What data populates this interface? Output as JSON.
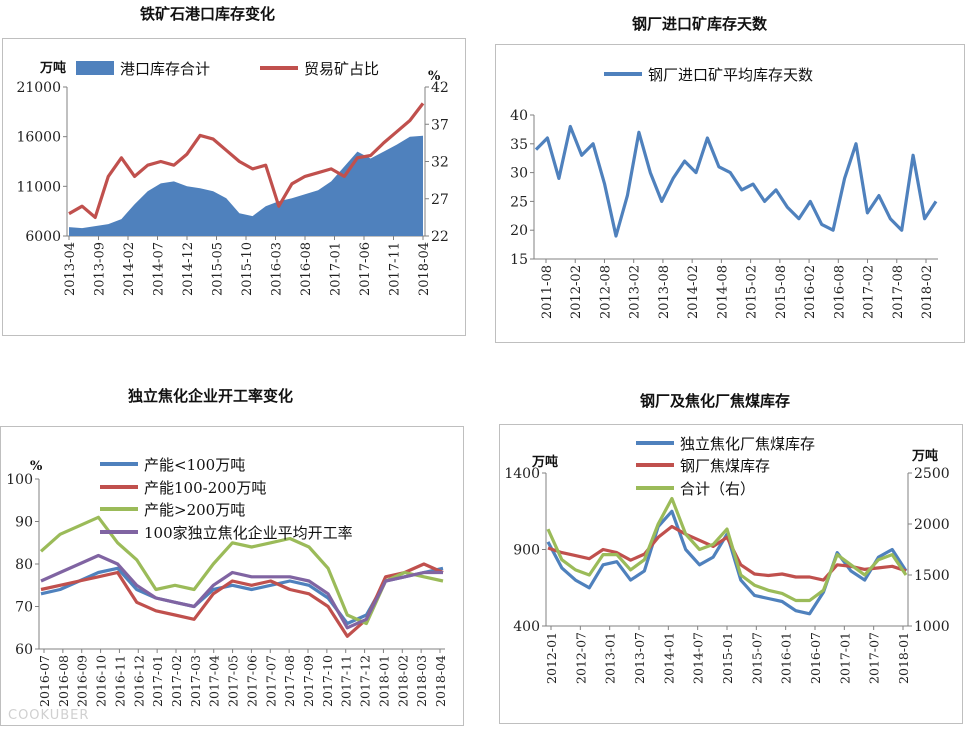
{
  "chart_data": [
    {
      "type": "area+line",
      "title": "铁矿石港口库存变化",
      "ylabel_left": "万吨",
      "ylabel_right": "%",
      "ylim_left": [
        6000,
        21000
      ],
      "ylim_right": [
        22,
        42
      ],
      "yticks_left": [
        "21000",
        "16000",
        "11000",
        "6000"
      ],
      "yticks_right": [
        "42",
        "37",
        "32",
        "27",
        "22"
      ],
      "x_ticks": [
        "2013-04",
        "2013-09",
        "2014-02",
        "2014-07",
        "2014-12",
        "2015-05",
        "2015-10",
        "2016-03",
        "2016-08",
        "2017-01",
        "2017-06",
        "2017-11",
        "2018-04"
      ],
      "series": [
        {
          "name": "港口库存合计",
          "axis": "left",
          "color": "#4f81bd",
          "values": [
            6900,
            6800,
            7000,
            7200,
            7700,
            9200,
            10500,
            11300,
            11500,
            11000,
            10800,
            10500,
            9800,
            8300,
            8000,
            9000,
            9500,
            9800,
            10200,
            10600,
            11500,
            13000,
            14500,
            13800,
            14500,
            15200,
            16000,
            16100
          ]
        },
        {
          "name": "贸易矿占比",
          "axis": "right",
          "color": "#c0504d",
          "values": [
            25,
            26,
            24.5,
            30,
            32.5,
            30,
            31.5,
            32,
            31.5,
            33,
            35.5,
            35,
            33.5,
            32,
            31,
            31.5,
            26,
            29,
            30,
            30.5,
            31,
            30,
            32.5,
            32.8,
            34.5,
            36,
            37.5,
            39.8
          ]
        }
      ]
    },
    {
      "type": "line",
      "title": "钢厂进口矿库存天数",
      "ylim": [
        15,
        40
      ],
      "yticks": [
        "40",
        "35",
        "30",
        "25",
        "20",
        "15"
      ],
      "x_ticks": [
        "2011-08",
        "2012-02",
        "2012-08",
        "2013-02",
        "2013-08",
        "2014-02",
        "2014-08",
        "2015-02",
        "2015-08",
        "2016-02",
        "2016-08",
        "2017-02",
        "2017-08",
        "2018-02"
      ],
      "series": [
        {
          "name": "钢厂进口矿平均库存天数",
          "color": "#4f81bd",
          "values": [
            34,
            36,
            29,
            38,
            33,
            35,
            28,
            19,
            26,
            37,
            30,
            25,
            29,
            32,
            30,
            36,
            31,
            30,
            27,
            28,
            25,
            27,
            24,
            22,
            25,
            21,
            20,
            29,
            35,
            23,
            26,
            22,
            20,
            33,
            22,
            25
          ]
        }
      ]
    },
    {
      "type": "line",
      "title": "独立焦化企业开工率变化",
      "ylabel": "%",
      "ylim": [
        60,
        100
      ],
      "yticks": [
        "100",
        "90",
        "80",
        "70",
        "60"
      ],
      "x_ticks": [
        "2016-07",
        "2016-08",
        "2016-09",
        "2016-10",
        "2016-11",
        "2016-12",
        "2017-01",
        "2017-02",
        "2017-03",
        "2017-04",
        "2017-05",
        "2017-06",
        "2017-07",
        "2017-08",
        "2017-09",
        "2017-10",
        "2017-11",
        "2017-12",
        "2018-01",
        "2018-02",
        "2018-03",
        "2018-04"
      ],
      "series": [
        {
          "name": "产能<100万吨",
          "color": "#4f81bd",
          "values": [
            73,
            74,
            76,
            78,
            79,
            74,
            72,
            71,
            70,
            74,
            75,
            74,
            75,
            76,
            75,
            72,
            66,
            68,
            76,
            77,
            78,
            79
          ]
        },
        {
          "name": "产能100-200万吨",
          "color": "#c0504d",
          "values": [
            74,
            75,
            76,
            77,
            78,
            71,
            69,
            68,
            67,
            73,
            76,
            75,
            76,
            74,
            73,
            70,
            63,
            67,
            77,
            78,
            80,
            78
          ]
        },
        {
          "name": "产能>200万吨",
          "color": "#9bbb59",
          "values": [
            83,
            87,
            89,
            91,
            85,
            81,
            74,
            75,
            74,
            80,
            85,
            84,
            85,
            86,
            84,
            79,
            68,
            66,
            76,
            78,
            77,
            76
          ]
        },
        {
          "name": "100家独立焦化企业平均开工率",
          "color": "#8064a2",
          "values": [
            76,
            78,
            80,
            82,
            80,
            75,
            72,
            71,
            70,
            75,
            78,
            77,
            77,
            77,
            76,
            73,
            65,
            67,
            76,
            77,
            78,
            78
          ]
        }
      ]
    },
    {
      "type": "line",
      "title": "钢厂及焦化厂焦煤库存",
      "ylabel_left": "万吨",
      "ylabel_right": "万吨",
      "ylim_left": [
        400,
        1400
      ],
      "ylim_right": [
        1000,
        2500
      ],
      "yticks_left": [
        "1400",
        "900",
        "400"
      ],
      "yticks_right": [
        "2500",
        "2000",
        "1500",
        "1000"
      ],
      "x_ticks": [
        "2012-01",
        "2012-07",
        "2013-01",
        "2013-07",
        "2014-01",
        "2014-07",
        "2015-01",
        "2015-07",
        "2016-01",
        "2016-07",
        "2017-01",
        "2017-07",
        "2018-01"
      ],
      "series": [
        {
          "name": "独立焦化厂焦煤库存",
          "axis": "left",
          "color": "#4f81bd",
          "values": [
            950,
            780,
            700,
            650,
            800,
            820,
            700,
            760,
            1050,
            1150,
            900,
            800,
            850,
            1000,
            700,
            600,
            580,
            560,
            500,
            480,
            620,
            880,
            760,
            700,
            850,
            900,
            760
          ]
        },
        {
          "name": "钢厂焦煤库存",
          "axis": "left",
          "color": "#c0504d",
          "values": [
            910,
            880,
            860,
            840,
            900,
            880,
            830,
            870,
            980,
            1050,
            1000,
            960,
            920,
            980,
            800,
            740,
            730,
            740,
            720,
            720,
            700,
            800,
            790,
            770,
            780,
            790,
            760
          ]
        },
        {
          "name": "合计（右）",
          "axis": "right",
          "color": "#9bbb59",
          "values": [
            1950,
            1650,
            1550,
            1500,
            1700,
            1700,
            1550,
            1650,
            2000,
            2250,
            1900,
            1750,
            1800,
            1950,
            1500,
            1400,
            1350,
            1320,
            1250,
            1250,
            1350,
            1700,
            1600,
            1500,
            1650,
            1700,
            1500
          ]
        }
      ]
    }
  ],
  "watermark": "COOKUBER"
}
